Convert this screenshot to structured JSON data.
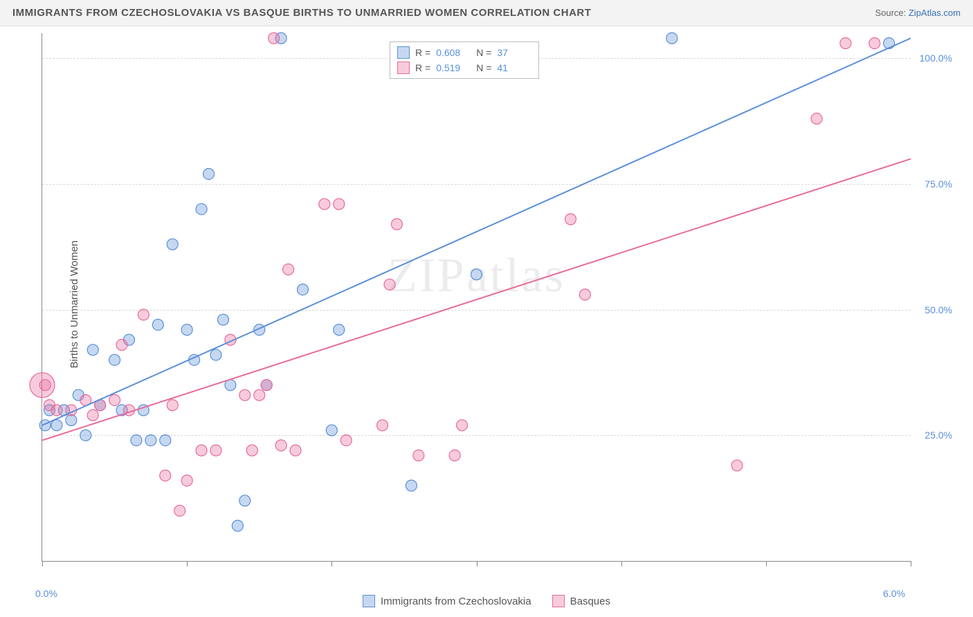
{
  "header": {
    "title": "IMMIGRANTS FROM CZECHOSLOVAKIA VS BASQUE BIRTHS TO UNMARRIED WOMEN CORRELATION CHART",
    "source_prefix": "Source: ",
    "source_name": "ZipAtlas.com"
  },
  "chart": {
    "type": "scatter",
    "y_axis_title": "Births to Unmarried Women",
    "xlim": [
      0,
      6
    ],
    "ylim": [
      0,
      105
    ],
    "x_ticks": [
      0,
      1,
      2,
      3,
      4,
      5,
      6
    ],
    "x_tick_labels_shown": {
      "0": "0.0%",
      "6": "6.0%"
    },
    "y_gridlines": [
      25,
      50,
      75,
      100
    ],
    "y_tick_labels": {
      "25": "25.0%",
      "50": "50.0%",
      "75": "75.0%",
      "100": "100.0%"
    },
    "background_color": "#ffffff",
    "grid_color": "#d8d8d8",
    "axis_color": "#888888",
    "label_color": "#5b8fd6",
    "watermark_text": "ZIPatlas",
    "marker_radius": 8,
    "marker_fill_opacity": 0.35,
    "line_width": 2,
    "series": [
      {
        "id": "czech",
        "label": "Immigrants from Czechoslovakia",
        "color": "#5b8fd6",
        "fill": "rgba(91,143,214,0.35)",
        "R": "0.608",
        "N": "37",
        "regression": {
          "x1": 0,
          "y1": 27,
          "x2": 6,
          "y2": 104
        },
        "points": [
          [
            0.02,
            27
          ],
          [
            0.05,
            30
          ],
          [
            0.1,
            27
          ],
          [
            0.15,
            30
          ],
          [
            0.2,
            28
          ],
          [
            0.25,
            33
          ],
          [
            0.3,
            25
          ],
          [
            0.35,
            42
          ],
          [
            0.4,
            31
          ],
          [
            0.5,
            40
          ],
          [
            0.55,
            30
          ],
          [
            0.6,
            44
          ],
          [
            0.65,
            24
          ],
          [
            0.7,
            30
          ],
          [
            0.75,
            24
          ],
          [
            0.8,
            47
          ],
          [
            0.85,
            24
          ],
          [
            0.9,
            63
          ],
          [
            1.0,
            46
          ],
          [
            1.05,
            40
          ],
          [
            1.1,
            70
          ],
          [
            1.15,
            77
          ],
          [
            1.2,
            41
          ],
          [
            1.25,
            48
          ],
          [
            1.3,
            35
          ],
          [
            1.35,
            7
          ],
          [
            1.4,
            12
          ],
          [
            1.5,
            46
          ],
          [
            1.55,
            35
          ],
          [
            1.65,
            104
          ],
          [
            1.8,
            54
          ],
          [
            2.0,
            26
          ],
          [
            2.05,
            46
          ],
          [
            2.55,
            15
          ],
          [
            3.0,
            57
          ],
          [
            4.35,
            104
          ],
          [
            5.85,
            103
          ]
        ]
      },
      {
        "id": "basques",
        "label": "Basques",
        "color": "#e76a9b",
        "fill": "rgba(231,106,155,0.35)",
        "R": "0.519",
        "N": "41",
        "regression": {
          "x1": 0,
          "y1": 24,
          "x2": 6,
          "y2": 80
        },
        "points": [
          [
            0.02,
            35
          ],
          [
            0.05,
            31
          ],
          [
            0.1,
            30
          ],
          [
            0.2,
            30
          ],
          [
            0.3,
            32
          ],
          [
            0.35,
            29
          ],
          [
            0.4,
            31
          ],
          [
            0.5,
            32
          ],
          [
            0.55,
            43
          ],
          [
            0.6,
            30
          ],
          [
            0.7,
            49
          ],
          [
            0.85,
            17
          ],
          [
            0.9,
            31
          ],
          [
            0.95,
            10
          ],
          [
            1.0,
            16
          ],
          [
            1.1,
            22
          ],
          [
            1.2,
            22
          ],
          [
            1.3,
            44
          ],
          [
            1.4,
            33
          ],
          [
            1.45,
            22
          ],
          [
            1.5,
            33
          ],
          [
            1.55,
            35
          ],
          [
            1.6,
            104
          ],
          [
            1.65,
            23
          ],
          [
            1.7,
            58
          ],
          [
            1.75,
            22
          ],
          [
            1.95,
            71
          ],
          [
            2.05,
            71
          ],
          [
            2.1,
            24
          ],
          [
            2.35,
            27
          ],
          [
            2.4,
            55
          ],
          [
            2.45,
            67
          ],
          [
            2.6,
            21
          ],
          [
            2.85,
            21
          ],
          [
            2.9,
            27
          ],
          [
            3.65,
            68
          ],
          [
            3.75,
            53
          ],
          [
            4.8,
            19
          ],
          [
            5.35,
            88
          ],
          [
            5.55,
            103
          ],
          [
            5.75,
            103
          ]
        ],
        "large_point": {
          "x": 0.0,
          "y": 35,
          "r": 18
        }
      }
    ]
  },
  "legend_top": {
    "r_label": "R =",
    "n_label": "N ="
  }
}
